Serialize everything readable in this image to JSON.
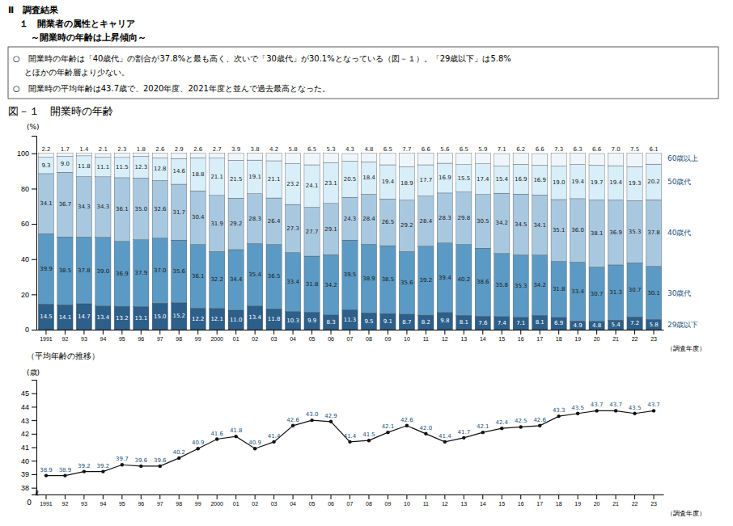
{
  "chart_data": [
    {
      "type": "bar",
      "stacked": true,
      "data_labels": true,
      "title": "図－１　開業時の年齢",
      "xlabel": "（調査年度）",
      "ylabel": "(%)",
      "annotations": [
        "Ⅱ　調査結果",
        "１　開業者の属性とキャリア",
        "～開業時の年齢は上昇傾向～",
        "○　開業時の年齢は「40歳代」の割合が37.8%と最も高く、次いで「30歳代」が30.1%となっている（図－１）。「29歳以下」は5.8%",
        "とほかの年齢層より少ない。",
        "○　開業時の平均年齢は43.7歳で、2020年度、2021年度と並んで過去最高となった。"
      ],
      "categories": [
        "1991",
        "92",
        "93",
        "94",
        "95",
        "96",
        "97",
        "98",
        "99",
        "2000",
        "01",
        "02",
        "03",
        "04",
        "05",
        "06",
        "07",
        "08",
        "09",
        "10",
        "11",
        "12",
        "13",
        "14",
        "15",
        "16",
        "17",
        "18",
        "19",
        "20",
        "21",
        "22",
        "23"
      ],
      "ylim": [
        0,
        110
      ],
      "yticks": [
        0,
        20,
        40,
        60,
        80,
        100
      ],
      "series": [
        {
          "name": "29歳以下",
          "color": "#2c5f8a",
          "values": [
            14.5,
            14.1,
            14.7,
            13.4,
            13.2,
            13.1,
            15.0,
            15.2,
            12.2,
            12.1,
            11.0,
            13.4,
            11.8,
            10.3,
            9.9,
            8.3,
            11.3,
            9.5,
            9.1,
            8.7,
            8.2,
            9.8,
            8.1,
            7.6,
            7.4,
            7.1,
            8.1,
            6.9,
            4.9,
            4.8,
            5.4,
            7.2,
            5.8
          ],
          "value_labels": [
            "14.5",
            "14.1",
            "14.7",
            "13.4",
            "13.2",
            "13.1",
            "15.0",
            "15.2",
            "12.2",
            "12.1",
            "11.0",
            "13.4",
            "11.8",
            "10.3",
            "9.9",
            "8.3",
            "11.3",
            "9.5",
            "9.1",
            "8.7",
            "8.2",
            "9.8",
            "8.1",
            "7.6",
            "7.4",
            "7.1",
            "8.1",
            "6.9",
            "4.9",
            "4.8",
            "5.4",
            "7.2",
            "5.8"
          ]
        },
        {
          "name": "30歳代",
          "color": "#5b9ac4",
          "values": [
            39.9,
            38.5,
            37.8,
            39.0,
            36.9,
            37.9,
            37.0,
            35.6,
            36.1,
            32.2,
            34.4,
            35.4,
            36.5,
            33.4,
            31.8,
            34.2,
            39.5,
            38.9,
            38.5,
            35.6,
            39.2,
            39.4,
            40.2,
            38.6,
            35.8,
            35.3,
            34.2,
            31.8,
            33.4,
            30.7,
            31.3,
            30.7,
            30.1
          ],
          "value_labels": [
            "39.9",
            "38.5",
            "37.8",
            "39.0",
            "36.9",
            "37.9",
            "37.0",
            "35.6",
            "36.1",
            "32.2",
            "34.4",
            "35.4",
            "36.5",
            "33.4",
            "31.8",
            "34.2",
            "39.5",
            "38.9",
            "38.5",
            "35.6",
            "39.2",
            "39.4",
            "40.2",
            "38.6",
            "35.8",
            "35.3",
            "34.2",
            "31.8",
            "33.4",
            "30.7",
            "31.3",
            "30.7",
            "30.1"
          ]
        },
        {
          "name": "40歳代",
          "color": "#a8c8e0",
          "values": [
            34.1,
            36.7,
            34.3,
            34.3,
            36.1,
            35.0,
            32.6,
            31.7,
            30.4,
            31.9,
            29.2,
            28.3,
            26.4,
            27.3,
            27.7,
            29.1,
            24.3,
            28.4,
            26.5,
            29.2,
            28.4,
            28.3,
            29.8,
            30.5,
            34.2,
            34.5,
            34.1,
            35.1,
            36.0,
            38.1,
            36.9,
            35.3,
            37.8
          ],
          "value_labels": [
            "34.1",
            "36.7",
            "34.3",
            "34.3",
            "36.1",
            "35.0",
            "32.6",
            "31.7",
            "30.4",
            "31.9",
            "29.2",
            "28.3",
            "26.4",
            "27.3",
            "27.7",
            "29.1",
            "24.3",
            "28.4",
            "26.5",
            "29.2",
            "28.4",
            "28.3",
            "29.8",
            "30.5",
            "34.2",
            "34.5",
            "34.1",
            "35.1",
            "36.0",
            "38.1",
            "36.9",
            "35.3",
            "37.8"
          ]
        },
        {
          "name": "50歳代",
          "color": "#d8eef8",
          "values": [
            9.3,
            9.0,
            11.8,
            11.1,
            11.5,
            12.3,
            12.8,
            14.6,
            18.8,
            21.1,
            21.5,
            19.1,
            21.1,
            23.2,
            24.1,
            23.1,
            20.5,
            18.4,
            19.4,
            18.9,
            17.7,
            16.9,
            15.5,
            17.4,
            15.4,
            16.9,
            16.9,
            19.0,
            19.4,
            19.7,
            19.4,
            19.3,
            20.2
          ],
          "value_labels": [
            "9.3",
            "9.0",
            "11.8",
            "11.1",
            "11.5",
            "12.3",
            "12.8",
            "14.6",
            "18.8",
            "21.1",
            "21.5",
            "19.1",
            "21.1",
            "23.2",
            "24.1",
            "23.1",
            "20.5",
            "18.4",
            "19.4",
            "18.9",
            "17.7",
            "16.9",
            "15.5",
            "17.4",
            "15.4",
            "16.9",
            "16.9",
            "19.0",
            "19.4",
            "19.7",
            "19.4",
            "19.3",
            "20.2"
          ]
        },
        {
          "name": "60歳以上",
          "color": "#eef6fb",
          "values": [
            2.2,
            1.7,
            1.4,
            2.1,
            2.3,
            1.8,
            2.6,
            2.9,
            2.6,
            2.7,
            3.9,
            3.8,
            4.2,
            5.8,
            6.5,
            5.3,
            4.3,
            4.8,
            6.5,
            7.7,
            6.6,
            5.6,
            6.5,
            5.9,
            7.1,
            6.2,
            6.6,
            7.3,
            6.3,
            6.6,
            7.0,
            7.5,
            6.1
          ],
          "value_labels": [
            "2.2",
            "1.7",
            "1.4",
            "2.1",
            "2.3",
            "1.8",
            "2.6",
            "2.9",
            "2.6",
            "2.7",
            "3.9",
            "3.8",
            "4.2",
            "5.8",
            "6.5",
            "5.3",
            "4.3",
            "4.8",
            "6.5",
            "7.7",
            "6.6",
            "5.6",
            "6.5",
            "5.9",
            "7.1",
            "6.2",
            "6.6",
            "7.3",
            "6.3",
            "6.6",
            "7.0",
            "7.5",
            "6.1"
          ]
        }
      ]
    },
    {
      "type": "line",
      "data_labels": true,
      "marker": "circle",
      "color": "#111111",
      "title": "（平均年齢の推移）",
      "xlabel": "（調査年度）",
      "ylabel": "(歳)",
      "annotations": [
        "≈",
        "0"
      ],
      "categories": [
        "1991",
        "92",
        "93",
        "94",
        "95",
        "96",
        "97",
        "98",
        "99",
        "2000",
        "01",
        "02",
        "03",
        "04",
        "05",
        "06",
        "07",
        "08",
        "09",
        "10",
        "11",
        "12",
        "13",
        "14",
        "15",
        "16",
        "17",
        "18",
        "19",
        "20",
        "21",
        "22",
        "23"
      ],
      "ylim": [
        37.5,
        46
      ],
      "yticks": [
        38,
        39,
        40,
        41,
        42,
        43,
        44,
        45
      ],
      "values": [
        38.9,
        38.9,
        39.2,
        39.2,
        39.7,
        39.6,
        39.6,
        40.2,
        40.9,
        41.6,
        41.8,
        40.9,
        41.4,
        42.6,
        43.0,
        42.9,
        41.4,
        41.5,
        42.1,
        42.6,
        42.0,
        41.4,
        41.7,
        42.1,
        42.4,
        42.5,
        42.6,
        43.3,
        43.5,
        43.7,
        43.7,
        43.5,
        43.7
      ],
      "value_labels": [
        "38.9",
        "38.9",
        "39.2",
        "39.2",
        "39.7",
        "39.6",
        "39.6",
        "40.2",
        "40.9",
        "41.6",
        "41.8",
        "40.9",
        "41.4",
        "42.6",
        "43.0",
        "42.9",
        "41.4",
        "41.5",
        "42.1",
        "42.6",
        "42.0",
        "41.4",
        "41.7",
        "42.1",
        "42.4",
        "42.5",
        "42.6",
        "43.3",
        "43.5",
        "43.7",
        "43.7",
        "43.5",
        "43.7"
      ]
    }
  ]
}
